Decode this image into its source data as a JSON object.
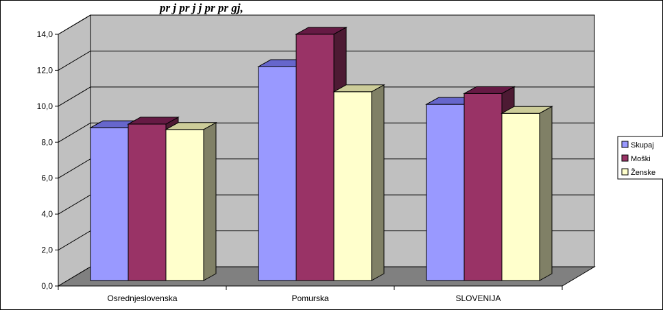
{
  "header": {
    "cropped_title": "pr j  pr j  j  pr pr    gj,"
  },
  "chart_data": {
    "type": "bar",
    "categories": [
      "Osrednjeslovenska",
      "Pomurska",
      "SLOVENIJA"
    ],
    "series": [
      {
        "name": "Skupaj",
        "values": [
          8.5,
          11.9,
          9.8
        ],
        "color": "#9999ff",
        "side_color": "#3333aa",
        "top_color": "#6666cc"
      },
      {
        "name": "Moški",
        "values": [
          8.7,
          13.7,
          10.4
        ],
        "color": "#993366",
        "side_color": "#4d1a33",
        "top_color": "#661a44"
      },
      {
        "name": "Ženske",
        "values": [
          8.4,
          10.5,
          9.3
        ],
        "color": "#ffffcc",
        "side_color": "#808066",
        "top_color": "#cccc99"
      }
    ],
    "yticks": [
      "0,0",
      "2,0",
      "4,0",
      "6,0",
      "8,0",
      "10,0",
      "12,0",
      "14,0"
    ],
    "ylim": [
      0,
      14
    ],
    "grid": true,
    "legend_position": "right",
    "wall_color": "#c0c0c0",
    "floor_color": "#808080"
  }
}
